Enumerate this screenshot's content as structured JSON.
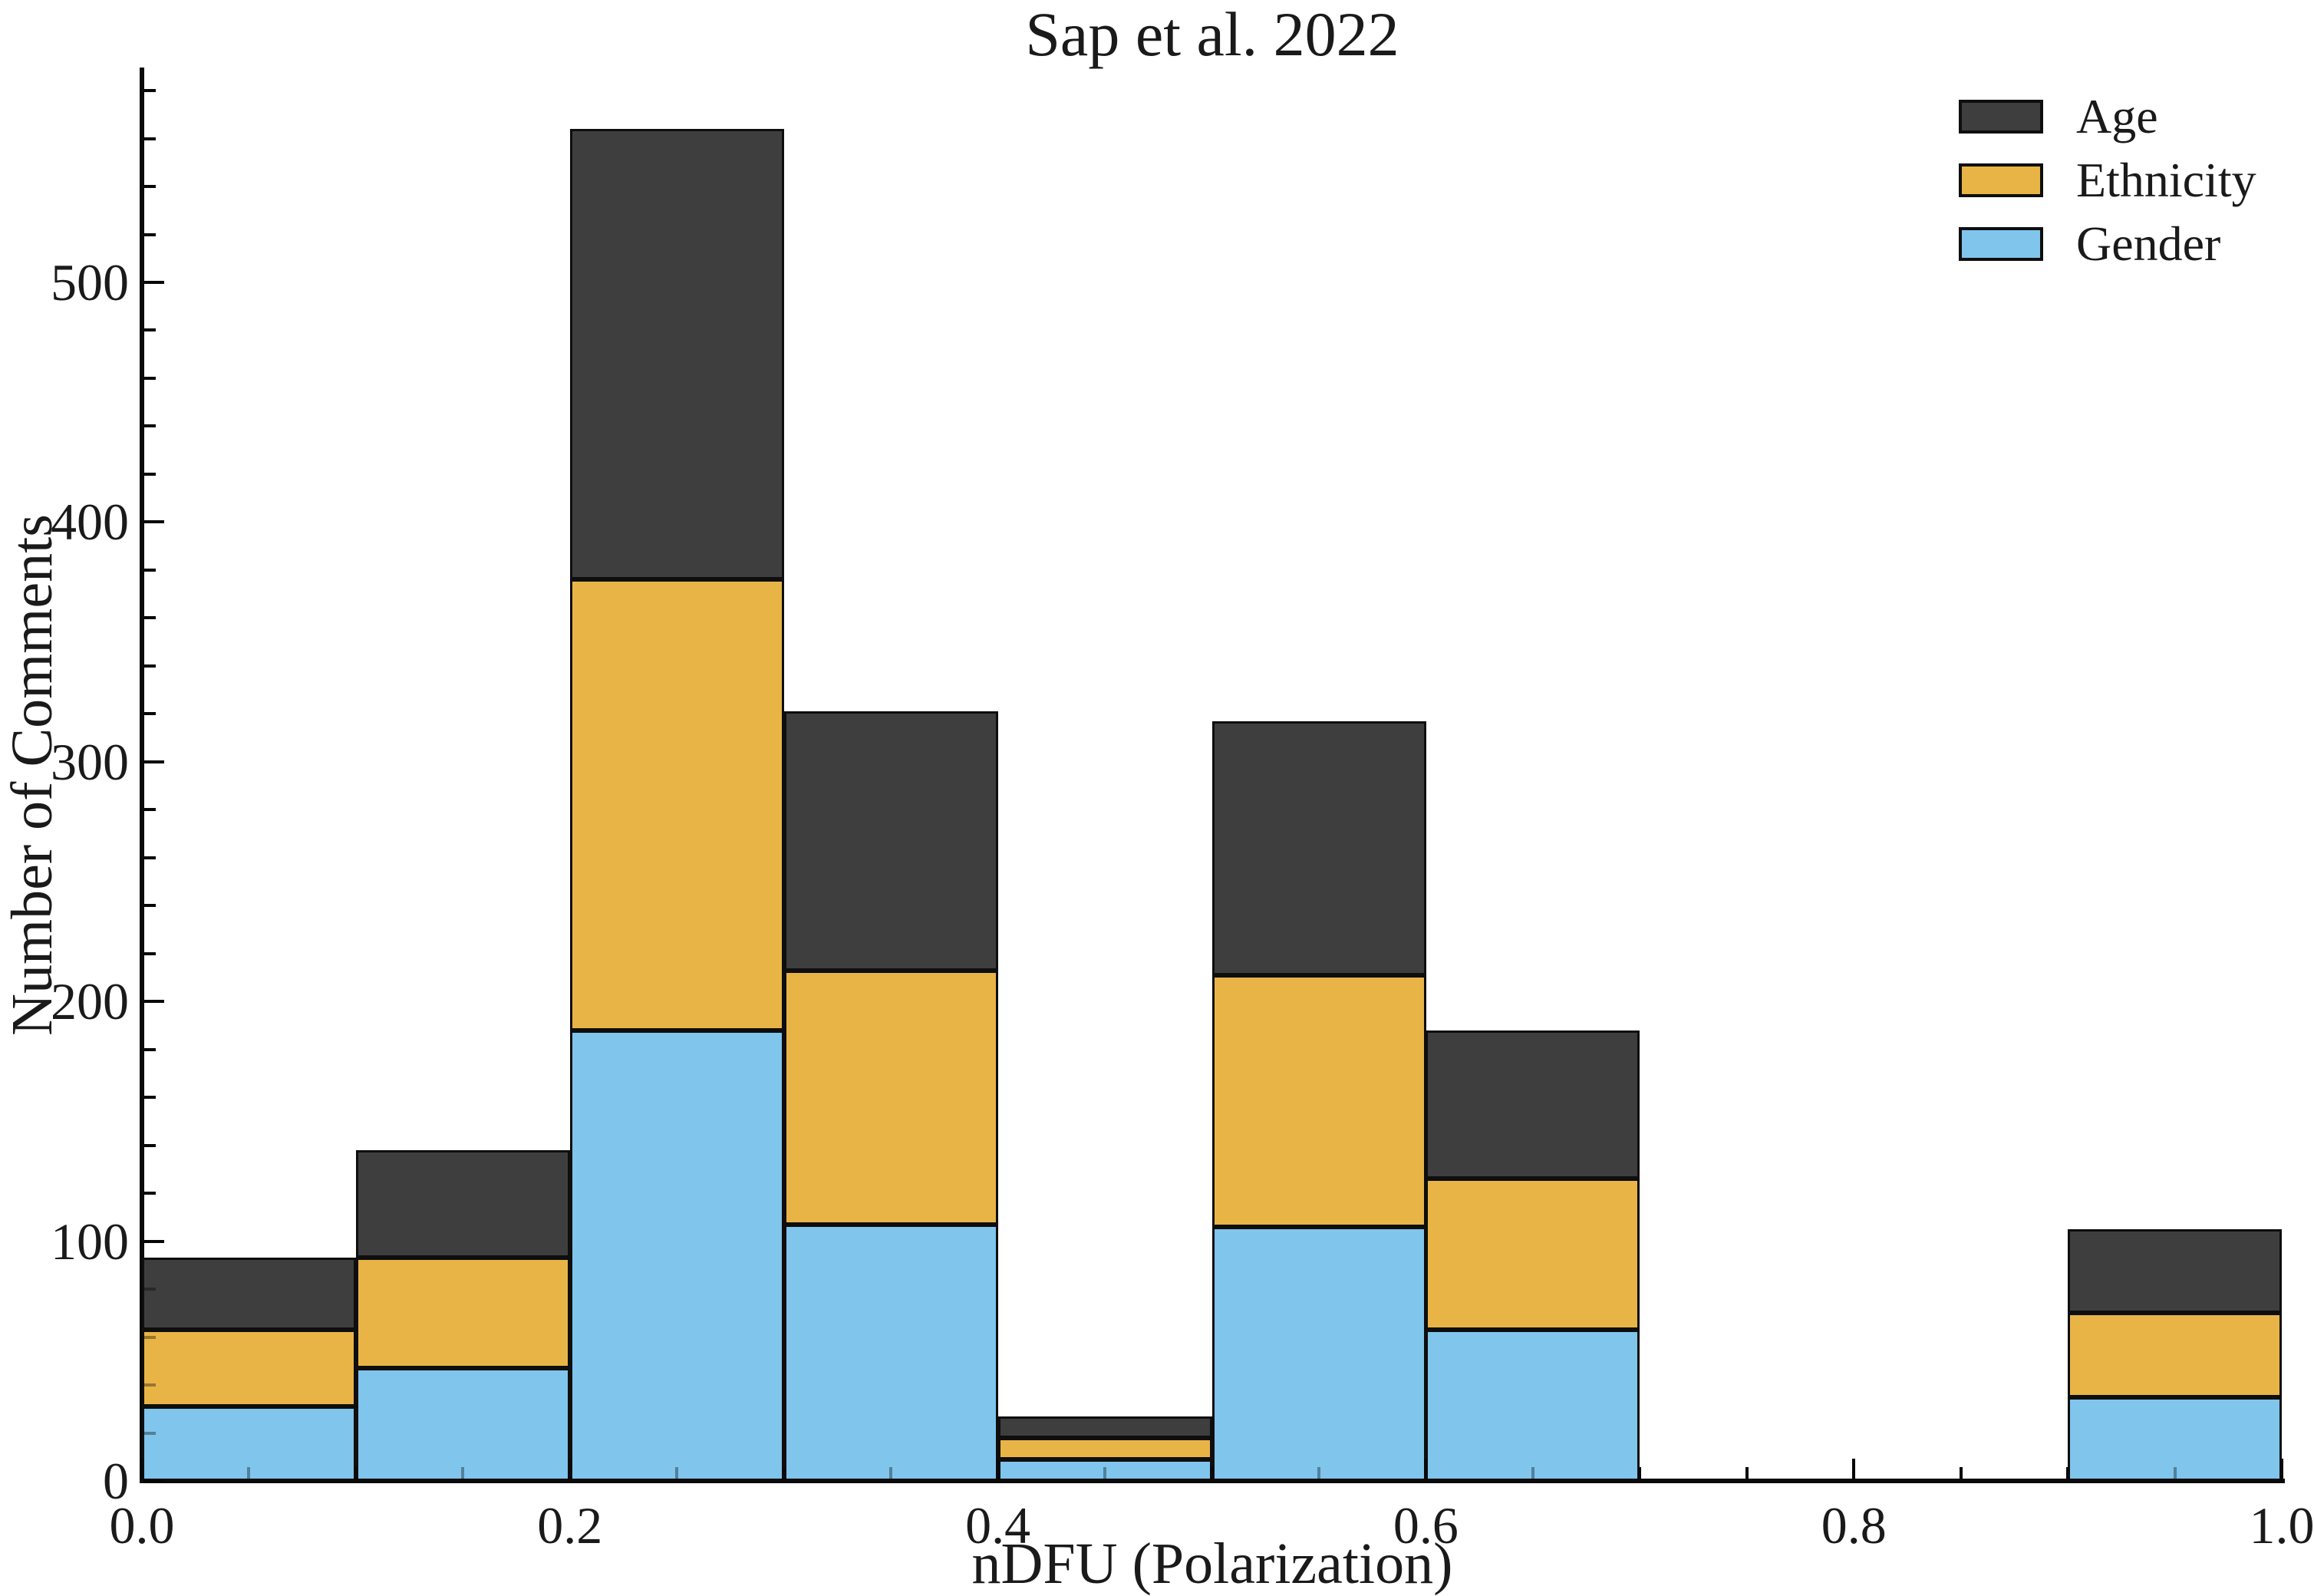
{
  "title": {
    "text": "Sap et al. 2022"
  },
  "legend": {
    "position": "upper-right",
    "items": [
      {
        "label": "Age",
        "color": "#3E3E3E"
      },
      {
        "label": "Ethnicity",
        "color": "#E9B446"
      },
      {
        "label": "Gender",
        "color": "#80C5EC"
      }
    ]
  },
  "chart_data": {
    "type": "bar",
    "subtype": "stacked-histogram",
    "title": "Sap et al. 2022",
    "xlabel": "nDFU (Polarization)",
    "ylabel": "Number of Comments",
    "xlim": [
      0.0,
      1.0
    ],
    "ylim": [
      0,
      588
    ],
    "grid": false,
    "legend_position": "upper right",
    "bin_edges": [
      0.0,
      0.1,
      0.2,
      0.3,
      0.4,
      0.5,
      0.6,
      0.7,
      0.8,
      0.9,
      1.0
    ],
    "stack_order_bottom_to_top": [
      "Gender",
      "Ethnicity",
      "Age"
    ],
    "series": [
      {
        "name": "Gender",
        "color": "#80C5EC",
        "values": [
          31,
          47,
          188,
          107,
          9,
          106,
          63,
          0,
          0,
          35
        ]
      },
      {
        "name": "Ethnicity",
        "color": "#E9B446",
        "values": [
          32,
          46,
          188,
          106,
          9,
          105,
          63,
          0,
          0,
          35
        ]
      },
      {
        "name": "Age",
        "color": "#3E3E3E",
        "values": [
          30,
          45,
          188,
          108,
          9,
          106,
          62,
          0,
          0,
          35
        ]
      }
    ],
    "stack_totals": [
      93,
      138,
      564,
      321,
      27,
      317,
      188,
      0,
      0,
      105
    ],
    "x_major_ticks": [
      0.0,
      0.2,
      0.4,
      0.6,
      0.8,
      1.0
    ],
    "x_major_tick_labels": [
      "0.0",
      "0.2",
      "0.4",
      "0.6",
      "0.8",
      "1.0"
    ],
    "x_minor_tick_step": 0.05,
    "y_major_ticks": [
      0,
      100,
      200,
      300,
      400,
      500
    ],
    "y_major_tick_labels": [
      "0",
      "100",
      "200",
      "300",
      "400",
      "500"
    ],
    "y_minor_tick_step": 20,
    "tick_direction": "in",
    "axis_color": "#0a0a0a"
  }
}
